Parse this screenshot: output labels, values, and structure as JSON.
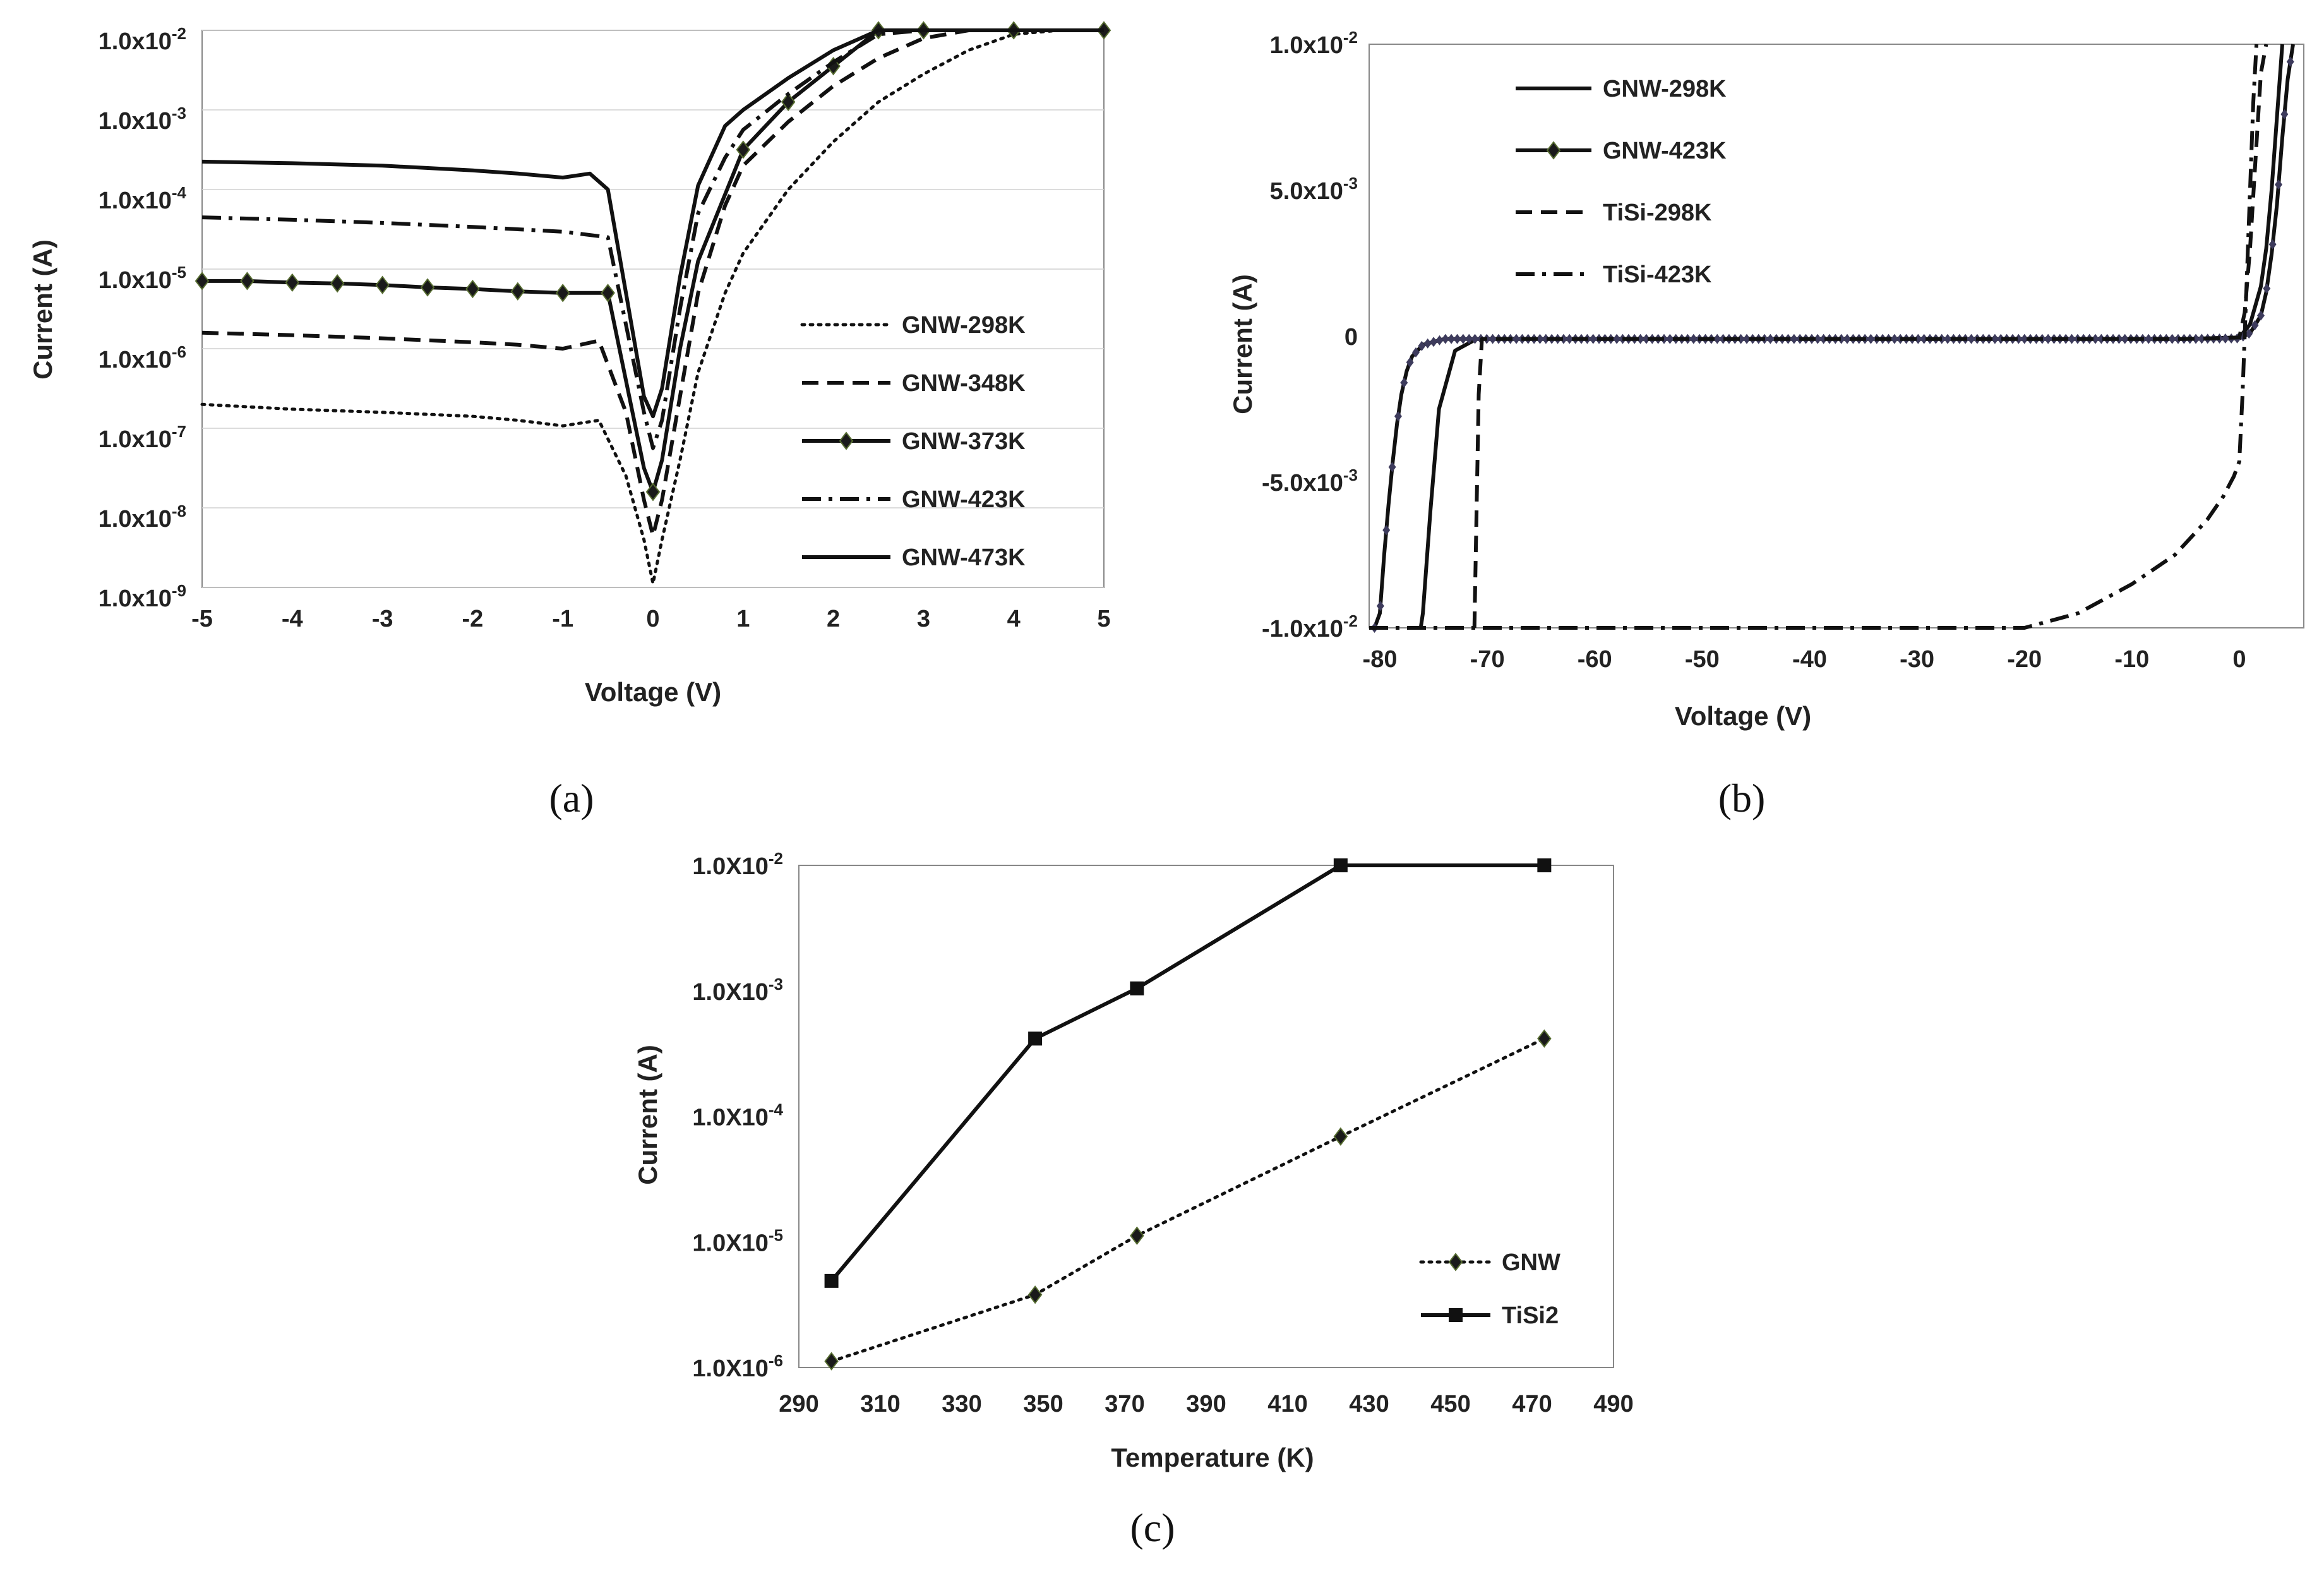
{
  "chart_data": [
    {
      "id": "a",
      "type": "line",
      "caption": "(a)",
      "xlabel": "Voltage (V)",
      "ylabel": "Current (A)",
      "xlim": [
        -5,
        5
      ],
      "ylim_log10": [
        -9,
        -2
      ],
      "yscale": "log",
      "x_ticks": [
        "-5",
        "-4",
        "-3",
        "-2",
        "-1",
        "0",
        "1",
        "2",
        "3",
        "4",
        "5"
      ],
      "y_ticks": [
        {
          "base": "1.0x10",
          "exp": "-2"
        },
        {
          "base": "1.0x10",
          "exp": "-3"
        },
        {
          "base": "1.0x10",
          "exp": "-4"
        },
        {
          "base": "1.0x10",
          "exp": "-5"
        },
        {
          "base": "1.0x10",
          "exp": "-6"
        },
        {
          "base": "1.0x10",
          "exp": "-7"
        },
        {
          "base": "1.0x10",
          "exp": "-8"
        },
        {
          "base": "1.0x10",
          "exp": "-9"
        }
      ],
      "legend_position": "right-middle",
      "series": [
        {
          "name": "GNW-298K",
          "style": "dotted",
          "marker": "none",
          "x": [
            -5,
            -4,
            -3,
            -2,
            -1.5,
            -1,
            -0.6,
            -0.3,
            -0.1,
            0,
            0.1,
            0.3,
            0.5,
            0.8,
            1,
            1.5,
            2,
            2.5,
            3,
            3.5,
            4,
            4.5,
            5
          ],
          "y": [
            -6.7,
            -6.76,
            -6.8,
            -6.85,
            -6.9,
            -6.97,
            -6.9,
            -7.6,
            -8.4,
            -8.95,
            -8.4,
            -7.4,
            -6.3,
            -5.3,
            -4.8,
            -4,
            -3.4,
            -2.9,
            -2.55,
            -2.25,
            -2.05,
            -2,
            -2
          ]
        },
        {
          "name": "GNW-348K",
          "style": "dashed",
          "marker": "none",
          "x": [
            -5,
            -4,
            -3,
            -2,
            -1.5,
            -1,
            -0.6,
            -0.3,
            -0.1,
            0,
            0.1,
            0.3,
            0.5,
            0.8,
            1,
            1.5,
            2,
            2.5,
            3,
            3.5,
            4,
            5
          ],
          "y": [
            -5.8,
            -5.83,
            -5.87,
            -5.92,
            -5.95,
            -6,
            -5.9,
            -6.8,
            -7.9,
            -8.35,
            -7.9,
            -6.6,
            -5.3,
            -4.2,
            -3.7,
            -3.15,
            -2.7,
            -2.35,
            -2.1,
            -2,
            -2,
            -2
          ]
        },
        {
          "name": "GNW-373K",
          "style": "solid",
          "marker": "diamond",
          "x": [
            -5,
            -4.5,
            -4,
            -3.5,
            -3,
            -2.5,
            -2,
            -1.5,
            -1,
            -0.5,
            -0.3,
            -0.1,
            0,
            0.1,
            0.3,
            0.5,
            1,
            1.5,
            2,
            2.5,
            3,
            4,
            5
          ],
          "y": [
            -5.15,
            -5.15,
            -5.17,
            -5.18,
            -5.2,
            -5.23,
            -5.25,
            -5.28,
            -5.3,
            -5.3,
            -6.4,
            -7.5,
            -7.8,
            -7.4,
            -6,
            -4.9,
            -3.5,
            -2.9,
            -2.45,
            -2,
            -2,
            -2,
            -2
          ]
        },
        {
          "name": "GNW-423K",
          "style": "dashdot",
          "marker": "none",
          "x": [
            -5,
            -4,
            -3,
            -2,
            -1.5,
            -1,
            -0.5,
            -0.3,
            -0.1,
            0,
            0.1,
            0.3,
            0.5,
            0.8,
            1,
            1.5,
            2,
            2.5,
            3,
            5
          ],
          "y": [
            -4.35,
            -4.38,
            -4.42,
            -4.47,
            -4.5,
            -4.53,
            -4.6,
            -5.7,
            -6.8,
            -7.25,
            -6.9,
            -5.5,
            -4.3,
            -3.6,
            -3.25,
            -2.8,
            -2.4,
            -2.05,
            -2,
            -2
          ]
        },
        {
          "name": "GNW-473K",
          "style": "solid",
          "marker": "none",
          "x": [
            -5,
            -4,
            -3,
            -2,
            -1.5,
            -1,
            -0.7,
            -0.5,
            -0.3,
            -0.1,
            0,
            0.1,
            0.3,
            0.5,
            0.8,
            1,
            1.5,
            2,
            2.5,
            3,
            5
          ],
          "y": [
            -3.65,
            -3.67,
            -3.7,
            -3.76,
            -3.8,
            -3.85,
            -3.8,
            -4,
            -5.3,
            -6.6,
            -6.85,
            -6.5,
            -5.1,
            -3.95,
            -3.2,
            -3,
            -2.6,
            -2.25,
            -2,
            -2,
            -2
          ]
        }
      ]
    },
    {
      "id": "b",
      "type": "line",
      "caption": "(b)",
      "xlabel": "Voltage (V)",
      "ylabel": "Current (A)",
      "xlim": [
        -81,
        6
      ],
      "ylim": [
        -0.01,
        0.01
      ],
      "yscale": "linear",
      "x_ticks": [
        {
          "label": "-80",
          "value": -80
        },
        {
          "label": "-70",
          "value": -70
        },
        {
          "label": "-60",
          "value": -60
        },
        {
          "label": "-50",
          "value": -50
        },
        {
          "label": "-40",
          "value": -40
        },
        {
          "label": "-30",
          "value": -30
        },
        {
          "label": "-20",
          "value": -20
        },
        {
          "label": "-10",
          "value": -10
        },
        {
          "label": "0",
          "value": 0
        }
      ],
      "y_ticks": [
        {
          "base": "1.0x10",
          "exp": "-2",
          "value": 0.01
        },
        {
          "base": "5.0x10",
          "exp": "-3",
          "value": 0.005
        },
        {
          "base": "0",
          "exp": "",
          "value": 0
        },
        {
          "base": "-5.0x10",
          "exp": "-3",
          "value": -0.005
        },
        {
          "base": "-1.0x10",
          "exp": "-2",
          "value": -0.01
        }
      ],
      "legend_position": "top-left",
      "series": [
        {
          "name": "GNW-298K",
          "style": "solid",
          "marker": "none",
          "x": [
            -76.2,
            -76,
            -75.3,
            -74.5,
            -73,
            -71,
            -60,
            -40,
            -20,
            -5,
            0,
            1,
            2,
            2.5,
            3,
            3.5,
            4
          ],
          "y": [
            -0.01,
            -0.0095,
            -0.006,
            -0.0025,
            -0.0005,
            -0.0001,
            -0.0001,
            -0.0001,
            -0.0001,
            -0.0001,
            -5e-05,
            0.0004,
            0.0017,
            0.003,
            0.005,
            0.0075,
            0.01
          ]
        },
        {
          "name": "GNW-423K",
          "style": "solid",
          "marker": "diamond",
          "x": [
            -80.5,
            -80,
            -79.6,
            -79.2,
            -78.8,
            -78.4,
            -78,
            -77.5,
            -77,
            -76,
            -74,
            -70,
            -60,
            -40,
            -20,
            -5,
            0,
            1,
            2,
            2.5,
            3,
            3.5,
            4,
            4.5,
            5
          ],
          "y": [
            -0.01,
            -0.0095,
            -0.0075,
            -0.0058,
            -0.0043,
            -0.003,
            -0.002,
            -0.0012,
            -0.0007,
            -0.0003,
            -0.0001,
            -0.0001,
            -0.0001,
            -0.0001,
            -0.0001,
            -0.0001,
            -8e-05,
            0.0001,
            0.0007,
            0.0015,
            0.0028,
            0.0045,
            0.0068,
            0.0088,
            0.01
          ]
        },
        {
          "name": "TiSi-298K",
          "style": "dashed",
          "marker": "none",
          "x": [
            -71.2,
            -71,
            -70.8,
            -70.5,
            -70,
            -60,
            -40,
            -20,
            -5,
            0,
            0.5,
            1,
            1.5,
            2,
            2.5
          ],
          "y": [
            -0.01,
            -0.006,
            -0.002,
            -0.0001,
            -0.0001,
            -0.0001,
            -0.0001,
            -0.0001,
            -0.0001,
            -5e-05,
            0.0008,
            0.003,
            0.006,
            0.009,
            0.01
          ]
        },
        {
          "name": "TiSi-423K",
          "style": "dashdot",
          "marker": "none",
          "x": [
            -81,
            -40,
            -20,
            -15,
            -10,
            -6,
            -3,
            -1.5,
            -0.5,
            0,
            0.3,
            0.6,
            1,
            1.3,
            1.6
          ],
          "y": [
            -0.01,
            -0.01,
            -0.01,
            -0.0095,
            -0.0085,
            -0.0075,
            -0.0063,
            -0.0055,
            -0.0048,
            -0.0043,
            -0.002,
            0.001,
            0.005,
            0.008,
            0.01
          ]
        }
      ]
    },
    {
      "id": "c",
      "type": "line",
      "caption": "(c)",
      "xlabel": "Temperature (K)",
      "ylabel": "Current (A)",
      "xlim": [
        290,
        490
      ],
      "ylim_log10": [
        -6,
        -2
      ],
      "yscale": "log",
      "x_ticks": [
        "290",
        "310",
        "330",
        "350",
        "370",
        "390",
        "410",
        "430",
        "450",
        "470",
        "490"
      ],
      "y_ticks": [
        {
          "base": "1.0X10",
          "exp": "-2"
        },
        {
          "base": "1.0X10",
          "exp": "-3"
        },
        {
          "base": "1.0X10",
          "exp": "-4"
        },
        {
          "base": "1.0X10",
          "exp": "-5"
        },
        {
          "base": "1.0X10",
          "exp": "-6"
        }
      ],
      "legend_position": "bottom-right",
      "series": [
        {
          "name": "GNW",
          "style": "dotted",
          "marker": "diamond",
          "x": [
            298,
            348,
            373,
            423,
            473
          ],
          "y_log10": [
            -5.95,
            -5.42,
            -4.95,
            -4.16,
            -3.38
          ]
        },
        {
          "name": "TiSi2",
          "style": "solid",
          "marker": "square",
          "x": [
            298,
            348,
            373,
            423,
            473
          ],
          "y_log10": [
            -5.31,
            -3.38,
            -2.98,
            -2,
            -2
          ]
        }
      ]
    }
  ]
}
